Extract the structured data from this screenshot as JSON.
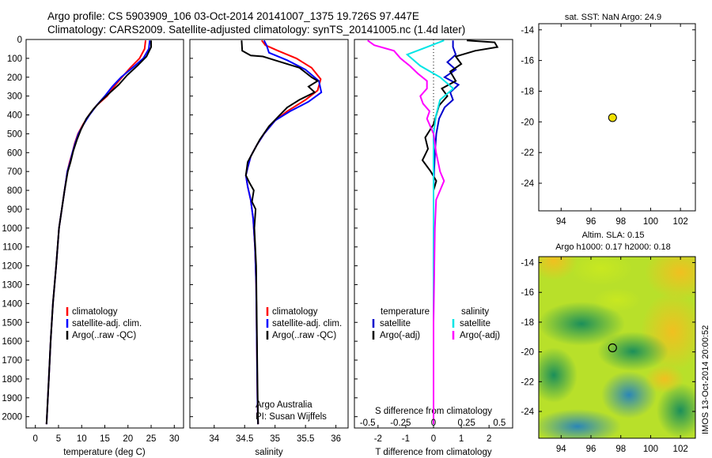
{
  "header": {
    "line1": "Argo profile: CS 5903909_106 03-Oct-2014 20141007_1375 19.726S 97.447E",
    "line2": "Climatology: CARS2009. Satellite-adjusted climatology: synTS_20141005.nc (1.4d later)"
  },
  "colors": {
    "climatology": "#ff0000",
    "satellite": "#0000ff",
    "argo": "#000000",
    "sat_t": "#0000cc",
    "sat_s": "#00e5e5",
    "argo_s": "#ff00ff"
  },
  "depth_ticks": [
    "0",
    "100",
    "200",
    "300",
    "400",
    "500",
    "600",
    "700",
    "800",
    "900",
    "1000",
    "1100",
    "1200",
    "1300",
    "1400",
    "1500",
    "1600",
    "1700",
    "1800",
    "1900",
    "2000"
  ],
  "chart_data": [
    {
      "type": "line",
      "xlabel": "temperature (deg C)",
      "xticks": [
        "0",
        "5",
        "10",
        "15",
        "20",
        "25",
        "30"
      ],
      "xlim": [
        -2,
        32
      ],
      "ylim": [
        2060,
        0
      ],
      "legend": [
        "climatology",
        "satellite-adj. clim.",
        "Argo(..raw -QC)"
      ],
      "series": [
        {
          "name": "climatology",
          "color": "#ff0000",
          "points": [
            [
              23.8,
              5
            ],
            [
              23.6,
              50
            ],
            [
              22.5,
              100
            ],
            [
              20.5,
              150
            ],
            [
              18.7,
              200
            ],
            [
              17.0,
              250
            ],
            [
              15.5,
              300
            ],
            [
              13.2,
              350
            ],
            [
              11.6,
              400
            ],
            [
              10.3,
              450
            ],
            [
              9.2,
              500
            ],
            [
              8.5,
              550
            ],
            [
              8.0,
              600
            ],
            [
              7.4,
              650
            ],
            [
              6.9,
              700
            ],
            [
              6.3,
              800
            ],
            [
              5.7,
              900
            ],
            [
              5.1,
              1000
            ],
            [
              4.5,
              1200
            ],
            [
              3.8,
              1400
            ],
            [
              3.3,
              1600
            ],
            [
              2.9,
              1800
            ],
            [
              2.5,
              2000
            ],
            [
              2.4,
              2040
            ]
          ]
        },
        {
          "name": "satellite-adj. clim.",
          "color": "#0000ff",
          "points": [
            [
              24.7,
              5
            ],
            [
              24.5,
              50
            ],
            [
              23.3,
              100
            ],
            [
              21.0,
              150
            ],
            [
              18.5,
              200
            ],
            [
              16.6,
              250
            ],
            [
              15.0,
              300
            ],
            [
              13.2,
              350
            ],
            [
              11.7,
              400
            ],
            [
              10.4,
              450
            ],
            [
              9.3,
              500
            ],
            [
              8.6,
              550
            ],
            [
              8.0,
              600
            ],
            [
              7.5,
              650
            ],
            [
              6.9,
              700
            ],
            [
              6.3,
              800
            ],
            [
              5.7,
              900
            ],
            [
              5.1,
              1000
            ],
            [
              4.5,
              1200
            ],
            [
              3.8,
              1400
            ],
            [
              3.3,
              1600
            ],
            [
              2.9,
              1800
            ],
            [
              2.5,
              2000
            ],
            [
              2.4,
              2040
            ]
          ]
        },
        {
          "name": "Argo(..raw -QC)",
          "color": "#000000",
          "points": [
            [
              25.0,
              5
            ],
            [
              25.0,
              40
            ],
            [
              24.0,
              90
            ],
            [
              22.0,
              140
            ],
            [
              19.8,
              190
            ],
            [
              18.0,
              240
            ],
            [
              16.2,
              280
            ],
            [
              14.0,
              330
            ],
            [
              12.5,
              370
            ],
            [
              11.0,
              420
            ],
            [
              9.8,
              480
            ],
            [
              9.0,
              530
            ],
            [
              8.2,
              590
            ],
            [
              7.6,
              650
            ],
            [
              7.0,
              700
            ],
            [
              6.3,
              800
            ],
            [
              5.7,
              900
            ],
            [
              5.1,
              1000
            ],
            [
              4.5,
              1200
            ],
            [
              3.8,
              1400
            ],
            [
              3.3,
              1600
            ],
            [
              2.9,
              1800
            ],
            [
              2.5,
              2000
            ],
            [
              2.4,
              2040
            ]
          ]
        }
      ]
    },
    {
      "type": "line",
      "xlabel": "salinity",
      "xticks": [
        "34",
        "34.5",
        "35",
        "35.5",
        "36"
      ],
      "xlim": [
        33.6,
        36.2
      ],
      "ylim": [
        2060,
        0
      ],
      "legend": [
        "climatology",
        "satellite-adj. clim.",
        "Argo(..raw -QC)"
      ],
      "annotation": [
        "Argo Australia",
        "PI: Susan Wijffels"
      ],
      "series": [
        {
          "name": "climatology",
          "color": "#ff0000",
          "points": [
            [
              34.78,
              5
            ],
            [
              34.84,
              30
            ],
            [
              35.05,
              60
            ],
            [
              35.35,
              100
            ],
            [
              35.6,
              150
            ],
            [
              35.75,
              210
            ],
            [
              35.7,
              270
            ],
            [
              35.5,
              320
            ],
            [
              35.2,
              380
            ],
            [
              35.0,
              430
            ],
            [
              34.82,
              500
            ],
            [
              34.7,
              560
            ],
            [
              34.6,
              620
            ],
            [
              34.55,
              680
            ],
            [
              34.52,
              720
            ],
            [
              34.55,
              780
            ],
            [
              34.6,
              850
            ],
            [
              34.64,
              950
            ],
            [
              34.67,
              1100
            ],
            [
              34.69,
              1300
            ],
            [
              34.7,
              1600
            ],
            [
              34.71,
              1900
            ],
            [
              34.72,
              2040
            ]
          ]
        },
        {
          "name": "satellite-adj. clim.",
          "color": "#0000ff",
          "points": [
            [
              34.82,
              5
            ],
            [
              34.86,
              30
            ],
            [
              34.9,
              70
            ],
            [
              35.2,
              110
            ],
            [
              35.5,
              160
            ],
            [
              35.72,
              220
            ],
            [
              35.76,
              280
            ],
            [
              35.55,
              330
            ],
            [
              35.25,
              380
            ],
            [
              35.0,
              430
            ],
            [
              34.82,
              500
            ],
            [
              34.7,
              560
            ],
            [
              34.6,
              620
            ],
            [
              34.55,
              680
            ],
            [
              34.52,
              720
            ],
            [
              34.55,
              780
            ],
            [
              34.6,
              850
            ],
            [
              34.64,
              950
            ],
            [
              34.67,
              1100
            ],
            [
              34.69,
              1300
            ],
            [
              34.7,
              1600
            ],
            [
              34.71,
              1900
            ],
            [
              34.72,
              2040
            ]
          ]
        },
        {
          "name": "Argo(..raw -QC)",
          "color": "#000000",
          "points": [
            [
              34.45,
              5
            ],
            [
              34.46,
              60
            ],
            [
              34.6,
              85
            ],
            [
              34.8,
              90
            ],
            [
              35.0,
              110
            ],
            [
              35.4,
              150
            ],
            [
              35.6,
              200
            ],
            [
              35.7,
              220
            ],
            [
              35.55,
              250
            ],
            [
              35.65,
              280
            ],
            [
              35.4,
              320
            ],
            [
              35.2,
              360
            ],
            [
              35.05,
              410
            ],
            [
              34.9,
              460
            ],
            [
              34.75,
              530
            ],
            [
              34.65,
              590
            ],
            [
              34.55,
              650
            ],
            [
              34.52,
              720
            ],
            [
              34.58,
              760
            ],
            [
              34.65,
              800
            ],
            [
              34.62,
              860
            ],
            [
              34.68,
              900
            ],
            [
              34.66,
              1000
            ],
            [
              34.69,
              1200
            ],
            [
              34.7,
              1500
            ],
            [
              34.71,
              1800
            ],
            [
              34.72,
              2040
            ]
          ]
        }
      ]
    },
    {
      "type": "line",
      "xlabel": "T difference from climatology",
      "xlabel2": "S difference from climatology",
      "xticks": [
        "-2",
        "-1",
        "0",
        "1",
        "2"
      ],
      "xticks2": [
        "-0.5",
        "-0.25",
        "0",
        "0.25",
        "0.5"
      ],
      "xlim": [
        -2.85,
        2.85
      ],
      "ylim": [
        2060,
        0
      ],
      "legend_left": {
        "title": "temperature",
        "items": [
          "satellite",
          "Argo(-adj)"
        ]
      },
      "legend_right": {
        "title": "salinity",
        "items": [
          "satellite",
          "Argo(-adj)"
        ]
      },
      "series": [
        {
          "name": "satellite (temperature)",
          "color": "#0000cc",
          "points": [
            [
              0.7,
              5
            ],
            [
              0.7,
              40
            ],
            [
              0.8,
              80
            ],
            [
              0.5,
              120
            ],
            [
              0.8,
              160
            ],
            [
              0.4,
              200
            ],
            [
              0.9,
              240
            ],
            [
              0.6,
              280
            ],
            [
              0.7,
              320
            ],
            [
              0.4,
              360
            ],
            [
              0.2,
              420
            ],
            [
              0.1,
              500
            ],
            [
              0.05,
              600
            ],
            [
              0.02,
              700
            ],
            [
              0.0,
              800
            ],
            [
              0.0,
              1000
            ],
            [
              0.0,
              1400
            ],
            [
              0.0,
              1800
            ],
            [
              0.0,
              2040
            ]
          ]
        },
        {
          "name": "Argo(-adj) (temperature)",
          "color": "#000000",
          "points": [
            [
              1.2,
              5
            ],
            [
              2.2,
              15
            ],
            [
              2.3,
              40
            ],
            [
              1.5,
              60
            ],
            [
              0.8,
              90
            ],
            [
              1.0,
              130
            ],
            [
              0.6,
              170
            ],
            [
              0.8,
              220
            ],
            [
              0.3,
              260
            ],
            [
              0.5,
              300
            ],
            [
              0.2,
              350
            ],
            [
              0.1,
              400
            ],
            [
              0.0,
              450
            ],
            [
              -0.3,
              520
            ],
            [
              -0.2,
              580
            ],
            [
              -0.4,
              640
            ],
            [
              -0.1,
              700
            ],
            [
              0.1,
              750
            ],
            [
              0.0,
              800
            ],
            [
              0.0,
              1000
            ],
            [
              0.0,
              1400
            ],
            [
              0.0,
              1800
            ],
            [
              0.0,
              2040
            ]
          ]
        },
        {
          "name": "satellite (salinity)",
          "color": "#00e5e5",
          "points": [
            [
              0.08,
              5
            ],
            [
              -0.05,
              40
            ],
            [
              -0.2,
              80
            ],
            [
              -0.15,
              110
            ],
            [
              -0.1,
              140
            ],
            [
              0.05,
              200
            ],
            [
              0.15,
              260
            ],
            [
              0.05,
              320
            ],
            [
              0.02,
              400
            ],
            [
              0.0,
              500
            ],
            [
              0.0,
              700
            ],
            [
              0.0,
              1000
            ],
            [
              0.0,
              1500
            ],
            [
              0.0,
              2040
            ]
          ]
        },
        {
          "name": "Argo(-adj) (salinity)",
          "color": "#ff00ff",
          "points": [
            [
              -0.5,
              5
            ],
            [
              -0.45,
              30
            ],
            [
              -0.3,
              60
            ],
            [
              -0.25,
              100
            ],
            [
              -0.18,
              140
            ],
            [
              -0.12,
              180
            ],
            [
              -0.05,
              220
            ],
            [
              -0.05,
              260
            ],
            [
              -0.1,
              300
            ],
            [
              -0.08,
              340
            ],
            [
              -0.03,
              380
            ],
            [
              -0.05,
              420
            ],
            [
              0.0,
              500
            ],
            [
              0.02,
              600
            ],
            [
              0.05,
              700
            ],
            [
              0.08,
              750
            ],
            [
              0.05,
              800
            ],
            [
              0.02,
              850
            ],
            [
              0.01,
              1000
            ],
            [
              0.0,
              1500
            ],
            [
              0.0,
              2040
            ]
          ]
        }
      ]
    },
    {
      "type": "scatter",
      "title": "sat. SST: NaN Argo: 24.9",
      "xticks": [
        "94",
        "96",
        "98",
        "100",
        "102"
      ],
      "yticks": [
        "-14",
        "-16",
        "-18",
        "-20",
        "-22",
        "-24"
      ],
      "xlim": [
        92.5,
        103
      ],
      "ylim": [
        -25.8,
        -13.6
      ],
      "points": [
        {
          "x": 97.447,
          "y": -19.726,
          "color": "#f0e000"
        }
      ]
    },
    {
      "type": "heatmap",
      "title_lines": [
        "Altim. SLA: 0.15",
        "Argo h1000: 0.17 h2000: 0.18"
      ],
      "xticks": [
        "94",
        "96",
        "98",
        "100",
        "102"
      ],
      "yticks": [
        "-14",
        "-16",
        "-18",
        "-20",
        "-22",
        "-24"
      ],
      "xlim": [
        92.5,
        103
      ],
      "ylim": [
        -25.8,
        -13.6
      ],
      "marker": {
        "x": 97.447,
        "y": -19.726
      }
    }
  ],
  "footer": {
    "stamp": "IMOS 13-Oct-2014 20:00:52"
  }
}
